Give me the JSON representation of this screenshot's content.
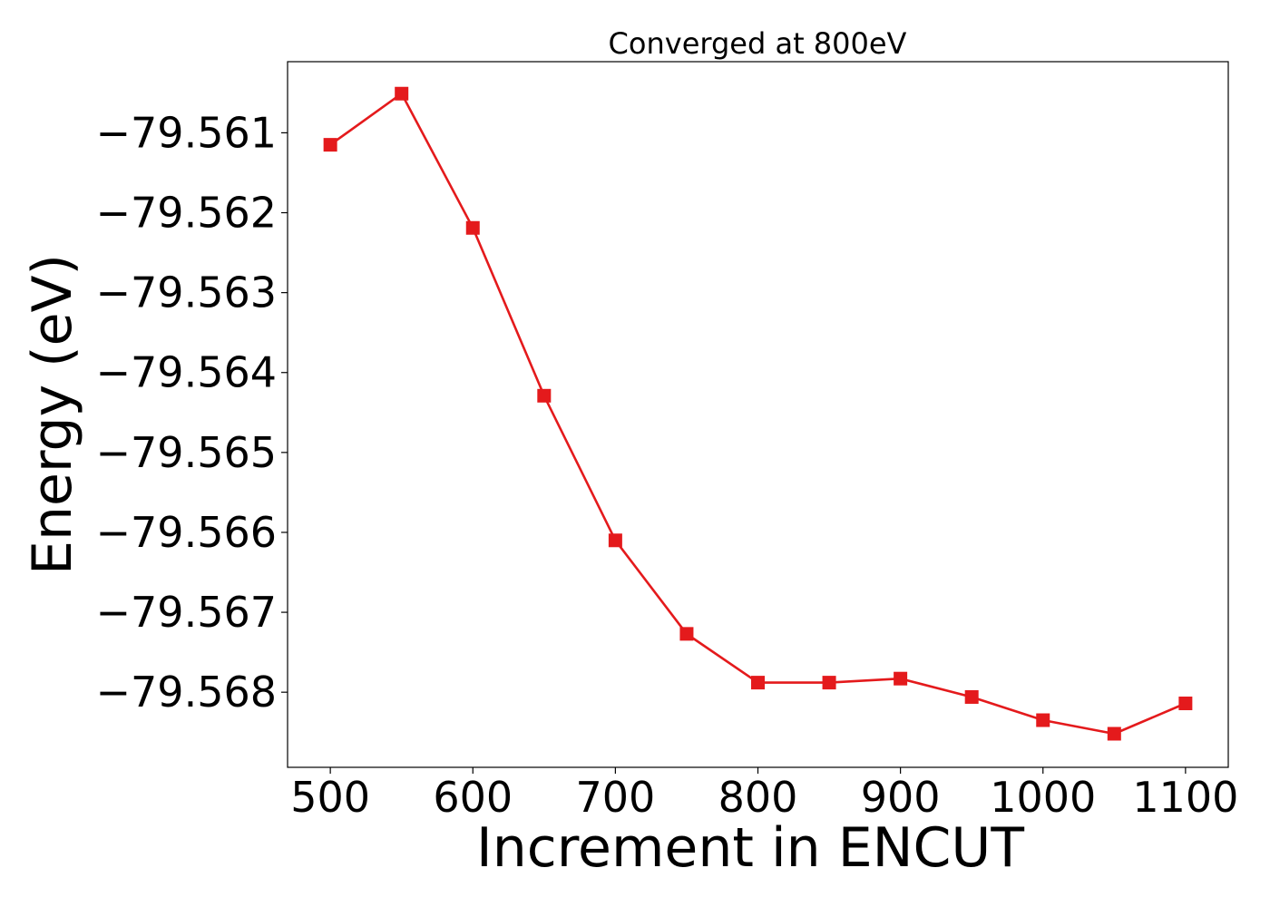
{
  "chart_data": {
    "type": "line",
    "title": "Converged at 800eV",
    "xlabel": "Increment in ENCUT",
    "ylabel": "Energy (eV)",
    "x": [
      500,
      550,
      600,
      650,
      700,
      750,
      800,
      850,
      900,
      950,
      1000,
      1050,
      1100
    ],
    "series": [
      {
        "values": [
          -79.56115,
          -79.56051,
          -79.56219,
          -79.56429,
          -79.5661,
          -79.56727,
          -79.56788,
          -79.56788,
          -79.56783,
          -79.56806,
          -79.56835,
          -79.56852,
          -79.56814
        ],
        "color": "#e41a1c",
        "marker": "square"
      }
    ],
    "xticks": [
      500,
      600,
      700,
      800,
      900,
      1000,
      1100
    ],
    "xtick_labels": [
      "500",
      "600",
      "700",
      "800",
      "900",
      "1000",
      "1100"
    ],
    "yticks": [
      -79.561,
      -79.562,
      -79.563,
      -79.564,
      -79.565,
      -79.566,
      -79.567,
      -79.568
    ],
    "ytick_labels": [
      "−79.561",
      "−79.562",
      "−79.563",
      "−79.564",
      "−79.565",
      "−79.566",
      "−79.567",
      "−79.568"
    ],
    "xlim": [
      470,
      1130
    ],
    "ylim": [
      -79.56894,
      -79.56011
    ],
    "grid": false,
    "legend": "none"
  }
}
